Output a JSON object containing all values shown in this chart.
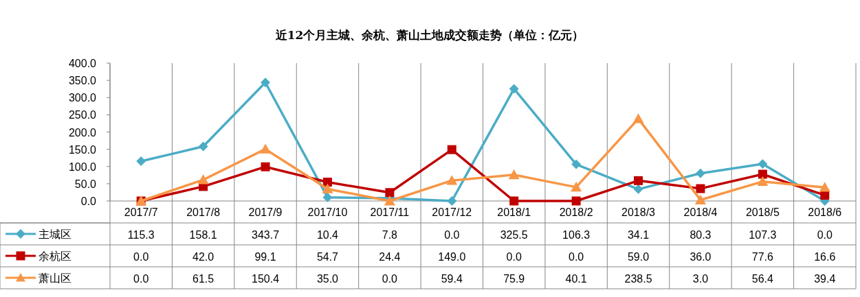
{
  "chart_data": {
    "type": "line",
    "title": "近12个月主城、余杭、萧山土地成交额走势（单位：亿元）",
    "categories": [
      "2017/7",
      "2017/8",
      "2017/9",
      "2017/10",
      "2017/11",
      "2017/12",
      "2018/1",
      "2018/2",
      "2018/3",
      "2018/4",
      "2018/5",
      "2018/6"
    ],
    "series": [
      {
        "name": "主城区",
        "color": "#4bacc6",
        "marker": "diamond",
        "values": [
          115.3,
          158.1,
          343.7,
          10.4,
          7.8,
          0.0,
          325.5,
          106.3,
          34.1,
          80.3,
          107.3,
          0.0
        ],
        "value_labels": [
          "115.3",
          "158.1",
          "343.7",
          "10.4",
          "7.8",
          "0.0",
          "325.5",
          "106.3",
          "34.1",
          "80.3",
          "107.3",
          "0.0"
        ]
      },
      {
        "name": "余杭区",
        "color": "#c00000",
        "marker": "square",
        "values": [
          0.0,
          42.0,
          99.1,
          54.7,
          24.4,
          149.0,
          0.0,
          0.0,
          59.0,
          36.0,
          77.6,
          16.6
        ],
        "value_labels": [
          "0.0",
          "42.0",
          "99.1",
          "54.7",
          "24.4",
          "149.0",
          "0.0",
          "0.0",
          "59.0",
          "36.0",
          "77.6",
          "16.6"
        ]
      },
      {
        "name": "萧山区",
        "color": "#f79646",
        "marker": "triangle",
        "values": [
          0.0,
          61.5,
          150.4,
          35.0,
          0.0,
          59.4,
          75.9,
          40.1,
          238.5,
          3.0,
          56.4,
          39.4
        ],
        "value_labels": [
          "0.0",
          "61.5",
          "150.4",
          "35.0",
          "0.0",
          "59.4",
          "75.9",
          "40.1",
          "238.5",
          "3.0",
          "56.4",
          "39.4"
        ]
      }
    ],
    "ylim": [
      0,
      400
    ],
    "yticks": [
      {
        "value": 0,
        "label": "0.0"
      },
      {
        "value": 50,
        "label": "50.0"
      },
      {
        "value": 100,
        "label": "100.0"
      },
      {
        "value": 150,
        "label": "150.0"
      },
      {
        "value": 200,
        "label": "200.0"
      },
      {
        "value": 250,
        "label": "250.0"
      },
      {
        "value": 300,
        "label": "300.0"
      },
      {
        "value": 350,
        "label": "350.0"
      },
      {
        "value": 400,
        "label": "400.0"
      }
    ],
    "grid": false,
    "legend": "bottom left",
    "line_style": "solid"
  }
}
